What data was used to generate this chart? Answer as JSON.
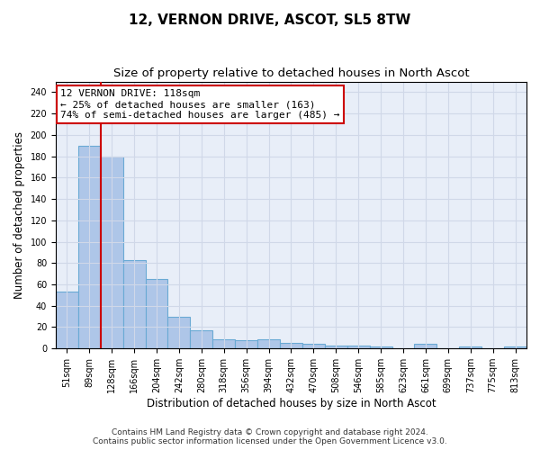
{
  "title": "12, VERNON DRIVE, ASCOT, SL5 8TW",
  "subtitle": "Size of property relative to detached houses in North Ascot",
  "xlabel": "Distribution of detached houses by size in North Ascot",
  "ylabel": "Number of detached properties",
  "categories": [
    "51sqm",
    "89sqm",
    "128sqm",
    "166sqm",
    "204sqm",
    "242sqm",
    "280sqm",
    "318sqm",
    "356sqm",
    "394sqm",
    "432sqm",
    "470sqm",
    "508sqm",
    "546sqm",
    "585sqm",
    "623sqm",
    "661sqm",
    "699sqm",
    "737sqm",
    "775sqm",
    "813sqm"
  ],
  "values": [
    53,
    190,
    180,
    83,
    65,
    30,
    17,
    9,
    8,
    9,
    5,
    4,
    3,
    3,
    2,
    0,
    4,
    0,
    2,
    0,
    2
  ],
  "bar_color": "#aec6e8",
  "bar_edge_color": "#6aaad4",
  "vline_x": 1.5,
  "vline_color": "#cc0000",
  "annotation_line1": "12 VERNON DRIVE: 118sqm",
  "annotation_line2": "← 25% of detached houses are smaller (163)",
  "annotation_line3": "74% of semi-detached houses are larger (485) →",
  "annotation_box_color": "#ffffff",
  "annotation_box_edge_color": "#cc0000",
  "ylim": [
    0,
    250
  ],
  "yticks": [
    0,
    20,
    40,
    60,
    80,
    100,
    120,
    140,
    160,
    180,
    200,
    220,
    240
  ],
  "grid_color": "#d0d8e8",
  "ax_bg_color": "#e8eef8",
  "background_color": "#ffffff",
  "footer_line1": "Contains HM Land Registry data © Crown copyright and database right 2024.",
  "footer_line2": "Contains public sector information licensed under the Open Government Licence v3.0.",
  "title_fontsize": 11,
  "subtitle_fontsize": 9.5,
  "xlabel_fontsize": 8.5,
  "ylabel_fontsize": 8.5,
  "tick_fontsize": 7,
  "annotation_fontsize": 8,
  "footer_fontsize": 6.5
}
